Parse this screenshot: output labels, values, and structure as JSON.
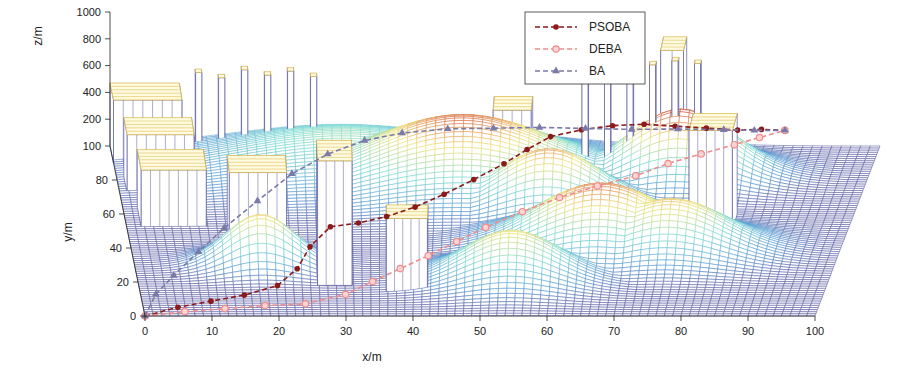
{
  "chart_data": {
    "type": "surface3d",
    "x_label": "x/m",
    "y_label": "y/m",
    "z_label": "z/m",
    "xlim": [
      0,
      100
    ],
    "xticks": [
      0,
      10,
      20,
      30,
      40,
      50,
      60,
      70,
      80,
      90,
      100
    ],
    "ylim": [
      0,
      100
    ],
    "yticks": [
      0,
      20,
      40,
      60,
      80,
      100
    ],
    "zlim": [
      0,
      1000
    ],
    "zticks": [
      200,
      400,
      600,
      800,
      1000
    ],
    "legend": "top",
    "series": [
      {
        "name": "PSOBA",
        "color": "#8b1a1a",
        "marker": "circle",
        "line_style": "dashed",
        "x": [
          0,
          5,
          10,
          15,
          20,
          23,
          25,
          28,
          32,
          36,
          40,
          44,
          48,
          52,
          55,
          58,
          62,
          66,
          70,
          74,
          78,
          82,
          85,
          88
        ],
        "y": [
          0,
          2,
          4,
          6,
          10,
          16,
          25,
          32,
          35,
          38,
          42,
          48,
          55,
          62,
          68,
          74,
          78,
          82,
          86,
          88,
          90,
          92,
          94,
          95
        ],
        "z": [
          0,
          40,
          60,
          80,
          100,
          150,
          200,
          260,
          250,
          260,
          280,
          300,
          320,
          350,
          380,
          400,
          400,
          380,
          340,
          300,
          260,
          220,
          200,
          180
        ]
      },
      {
        "name": "DEBA",
        "color": "#f08c8c",
        "marker": "ring",
        "line_style": "dashed",
        "x": [
          0,
          6,
          12,
          18,
          24,
          30,
          34,
          38,
          42,
          46,
          50,
          55,
          60,
          65,
          70,
          74,
          78,
          82,
          85,
          88
        ],
        "y": [
          0,
          1,
          2,
          3,
          4,
          8,
          14,
          20,
          26,
          32,
          38,
          44,
          50,
          56,
          62,
          70,
          78,
          85,
          90,
          95
        ],
        "z": [
          0,
          20,
          30,
          40,
          40,
          60,
          80,
          100,
          120,
          150,
          180,
          220,
          250,
          260,
          260,
          250,
          220,
          200,
          190,
          180
        ]
      },
      {
        "name": "BA",
        "color": "#7a7aa8",
        "marker": "triangle",
        "line_style": "dashed",
        "x": [
          0,
          2,
          5,
          9,
          13,
          18,
          23,
          28,
          33,
          38,
          44,
          50,
          56,
          62,
          68,
          74,
          80,
          84,
          88
        ],
        "y": [
          0,
          8,
          16,
          26,
          36,
          48,
          60,
          70,
          78,
          84,
          88,
          90,
          92,
          93,
          94,
          95,
          95,
          95,
          95
        ],
        "z": [
          0,
          60,
          100,
          150,
          200,
          250,
          300,
          320,
          320,
          300,
          280,
          260,
          240,
          220,
          200,
          190,
          185,
          180,
          180
        ]
      }
    ],
    "terrain": {
      "peaks": [
        {
          "x": 46,
          "y": 80,
          "height": 463,
          "spread": 12
        },
        {
          "x": 54,
          "y": 22,
          "height": 348,
          "spread": 7
        },
        {
          "x": 66,
          "y": 42,
          "height": 445,
          "spread": 9
        },
        {
          "x": 76,
          "y": 38,
          "height": 380,
          "spread": 8
        },
        {
          "x": 75,
          "y": 82,
          "height": 497,
          "spread": 7
        },
        {
          "x": 18,
          "y": 30,
          "height": 373,
          "spread": 5
        },
        {
          "x": 30,
          "y": 88,
          "height": 234,
          "spread": 14
        },
        {
          "x": 58,
          "y": 65,
          "height": 414,
          "spread": 7
        }
      ]
    },
    "obstacles": [
      {
        "x0": 0,
        "x1": 9,
        "y0": 90,
        "y1": 100,
        "height": 470
      },
      {
        "x0": 1,
        "x1": 10,
        "y0": 72,
        "y1": 82,
        "height": 440
      },
      {
        "x0": 2,
        "x1": 11,
        "y0": 52,
        "y1": 64,
        "height": 430
      },
      {
        "x0": 14,
        "x1": 22,
        "y0": 45,
        "y1": 55,
        "height": 500
      },
      {
        "x0": 26,
        "x1": 31,
        "y0": 18,
        "y1": 30,
        "height": 930
      },
      {
        "x0": 36,
        "x1": 42,
        "y0": 14,
        "y1": 22,
        "height": 550
      },
      {
        "x0": 50,
        "x1": 55,
        "y0": 88,
        "y1": 96,
        "height": 420
      },
      {
        "x0": 72,
        "x1": 75,
        "y0": 90,
        "y1": 98,
        "height": 840
      },
      {
        "x0": 78,
        "x1": 84,
        "y0": 50,
        "y1": 60,
        "height": 750
      },
      {
        "x0": 11,
        "x1": 11.8,
        "y0": 96,
        "y1": 98,
        "height": 600
      },
      {
        "x0": 14,
        "x1": 14.8,
        "y0": 96,
        "y1": 98,
        "height": 560
      },
      {
        "x0": 17,
        "x1": 17.8,
        "y0": 96,
        "y1": 98,
        "height": 620
      },
      {
        "x0": 20,
        "x1": 20.8,
        "y0": 96,
        "y1": 98,
        "height": 580
      },
      {
        "x0": 23,
        "x1": 23.8,
        "y0": 96,
        "y1": 98,
        "height": 610
      },
      {
        "x0": 26,
        "x1": 26.8,
        "y0": 96,
        "y1": 98,
        "height": 570
      },
      {
        "x0": 62,
        "x1": 62.8,
        "y0": 80,
        "y1": 82,
        "height": 880
      },
      {
        "x0": 65,
        "x1": 65.8,
        "y0": 80,
        "y1": 82,
        "height": 850
      },
      {
        "x0": 68,
        "x1": 68.8,
        "y0": 80,
        "y1": 82,
        "height": 900
      },
      {
        "x0": 71,
        "x1": 71.8,
        "y0": 80,
        "y1": 82,
        "height": 860
      },
      {
        "x0": 74,
        "x1": 74.8,
        "y0": 80,
        "y1": 82,
        "height": 890
      },
      {
        "x0": 77,
        "x1": 77.8,
        "y0": 80,
        "y1": 82,
        "height": 870
      }
    ]
  }
}
